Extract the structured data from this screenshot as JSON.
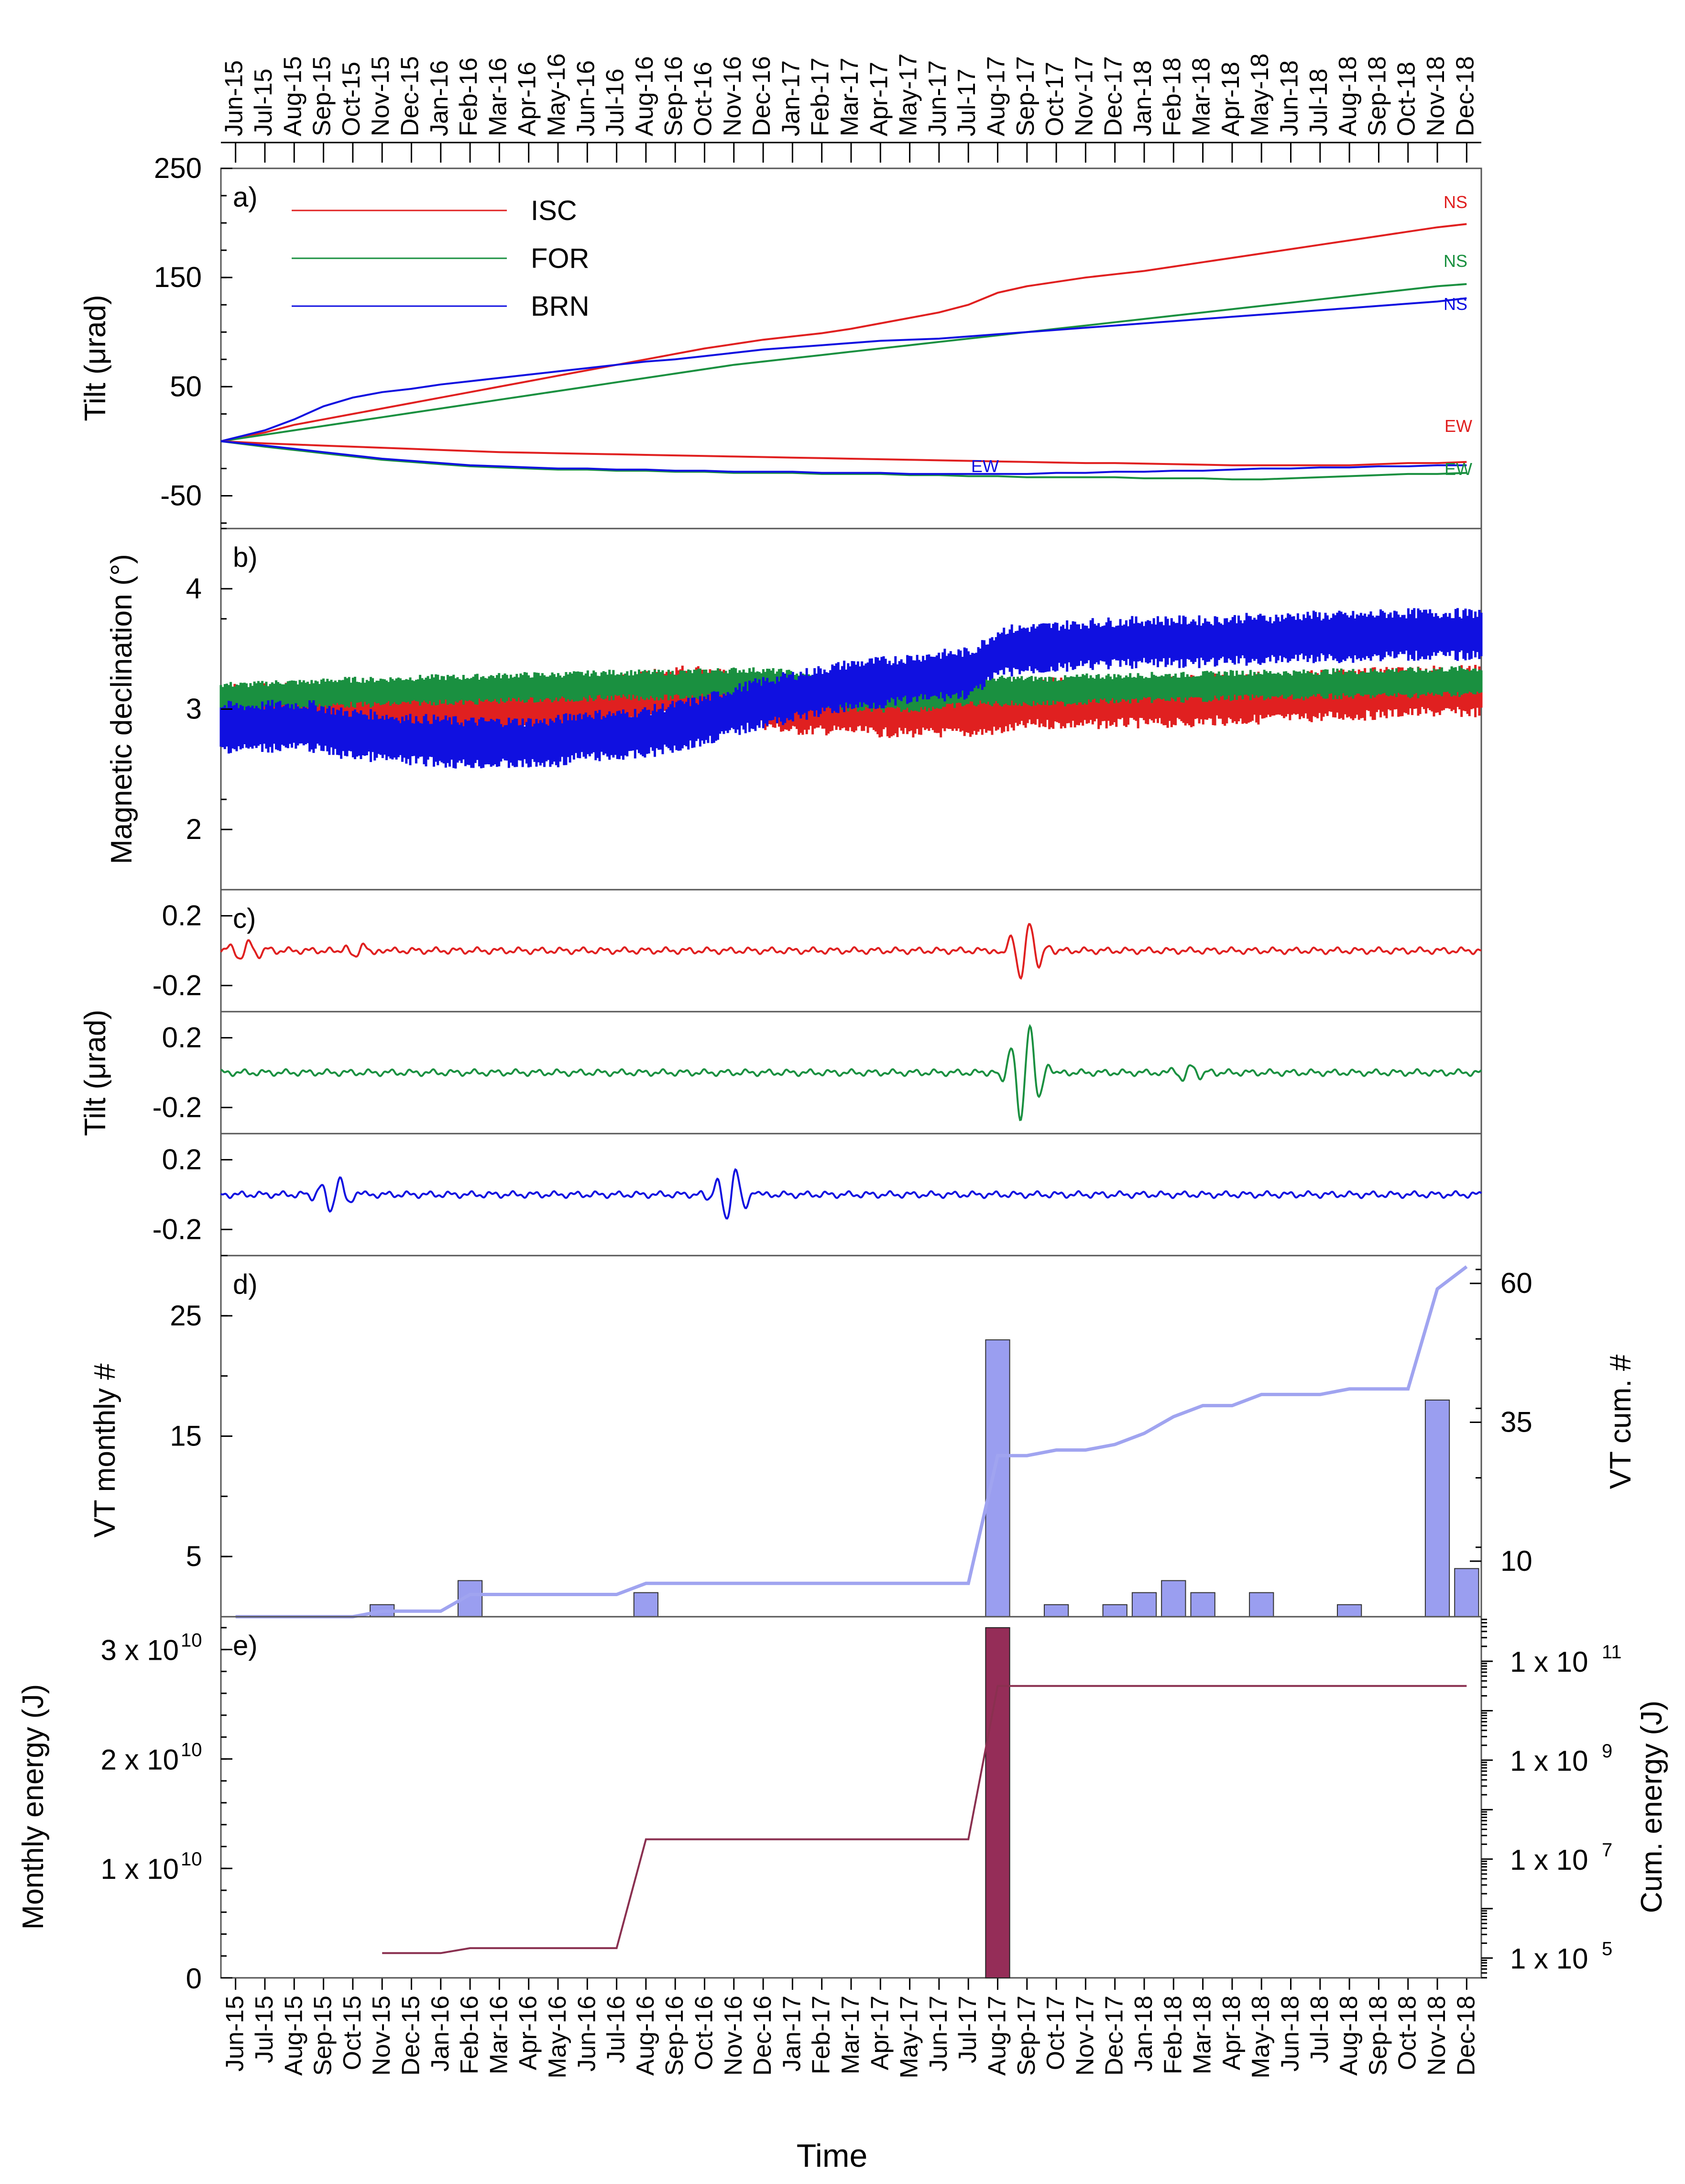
{
  "chart_data": {
    "type": "multi-panel time series",
    "months": [
      "Jun-15",
      "Jul-15",
      "Aug-15",
      "Sep-15",
      "Oct-15",
      "Nov-15",
      "Dec-15",
      "Jan-16",
      "Feb-16",
      "Mar-16",
      "Apr-16",
      "May-16",
      "Jun-16",
      "Jul-16",
      "Aug-16",
      "Sep-16",
      "Oct-16",
      "Nov-16",
      "Dec-16",
      "Jan-17",
      "Feb-17",
      "Mar-17",
      "Apr-17",
      "May-17",
      "Jun-17",
      "Jul-17",
      "Aug-17",
      "Sep-17",
      "Oct-17",
      "Nov-17",
      "Dec-17",
      "Jan-18",
      "Feb-18",
      "Mar-18",
      "Apr-18",
      "May-18",
      "Jun-18",
      "Jul-18",
      "Aug-18",
      "Sep-18",
      "Oct-18",
      "Nov-18",
      "Dec-18"
    ],
    "xlabel": "Time",
    "colors": {
      "ISC": "#e02020",
      "FOR": "#1a9040",
      "BRN": "#1010e0",
      "vt_bar": "#9a9ef0",
      "vt_line": "#a0a4f0",
      "energy_bar": "#952d58",
      "energy_line": "#8a3050"
    },
    "panels": [
      {
        "label": "a)",
        "ylabel": "Tilt (μrad)",
        "ylim": [
          -80,
          250
        ],
        "yticks": [
          "250",
          "150",
          "50",
          "-50"
        ],
        "ytick_values": [
          250,
          150,
          50,
          -50
        ],
        "legend": [
          "ISC",
          "FOR",
          "BRN"
        ],
        "series": [
          {
            "name": "ISC NS",
            "station": "ISC",
            "values": [
              0,
              8,
              15,
              20,
              25,
              30,
              35,
              40,
              45,
              50,
              55,
              60,
              65,
              70,
              75,
              80,
              85,
              89,
              93,
              96,
              99,
              103,
              108,
              113,
              118,
              125,
              136,
              142,
              146,
              150,
              153,
              156,
              160,
              164,
              168,
              172,
              176,
              180,
              184,
              188,
              192,
              196,
              199
            ]
          },
          {
            "name": "FOR NS",
            "station": "FOR",
            "values": [
              0,
              6,
              10,
              14,
              18,
              22,
              26,
              30,
              34,
              38,
              42,
              46,
              50,
              54,
              58,
              62,
              66,
              70,
              73,
              76,
              79,
              82,
              85,
              88,
              91,
              94,
              97,
              100,
              103,
              106,
              109,
              112,
              115,
              118,
              121,
              124,
              127,
              130,
              133,
              136,
              139,
              142,
              144
            ]
          },
          {
            "name": "BRN NS",
            "station": "BRN",
            "values": [
              0,
              10,
              20,
              32,
              40,
              45,
              48,
              52,
              55,
              58,
              61,
              64,
              67,
              70,
              73,
              75,
              78,
              81,
              84,
              86,
              88,
              90,
              92,
              93,
              94,
              96,
              98,
              100,
              102,
              104,
              106,
              108,
              110,
              112,
              114,
              116,
              118,
              120,
              122,
              124,
              126,
              128,
              131
            ]
          },
          {
            "name": "ISC EW",
            "station": "ISC",
            "values": [
              0,
              -2,
              -3,
              -4,
              -5,
              -6,
              -7,
              -8,
              -9,
              -10,
              -10.5,
              -11,
              -11.5,
              -12,
              -12.5,
              -13,
              -13.5,
              -14,
              -14.5,
              -15,
              -15.5,
              -16,
              -16.5,
              -17,
              -17.5,
              -18,
              -18.5,
              -19,
              -19.5,
              -20,
              -20,
              -20.5,
              -21,
              -21.5,
              -22,
              -22,
              -22,
              -22,
              -22,
              -21,
              -20,
              -20,
              -19
            ]
          },
          {
            "name": "FOR EW",
            "station": "FOR",
            "values": [
              0,
              -5,
              -8,
              -11,
              -14,
              -17,
              -19,
              -21,
              -23,
              -24,
              -25,
              -26,
              -26,
              -27,
              -27,
              -28,
              -28,
              -29,
              -29,
              -29,
              -30,
              -30,
              -30,
              -31,
              -31,
              -32,
              -32,
              -33,
              -33,
              -33,
              -33,
              -34,
              -34,
              -34,
              -35,
              -35,
              -34,
              -33,
              -32,
              -31,
              -30,
              -30,
              -29
            ]
          },
          {
            "name": "BRN EW",
            "station": "BRN",
            "values": [
              0,
              -4,
              -7,
              -10,
              -13,
              -16,
              -18,
              -20,
              -22,
              -23,
              -24,
              -25,
              -25,
              -26,
              -26,
              -27,
              -27,
              -28,
              -28,
              -28,
              -29,
              -29,
              -29,
              -30,
              -30,
              -30,
              -30,
              -30,
              -29,
              -29,
              -28,
              -28,
              -27,
              -27,
              -26,
              -25,
              -25,
              -24,
              -24,
              -23,
              -23,
              -22,
              -22
            ]
          }
        ],
        "annotations": [
          {
            "text": "NS",
            "color": "#e02020"
          },
          {
            "text": "NS",
            "color": "#1a9040"
          },
          {
            "text": "NS",
            "color": "#1010e0"
          },
          {
            "text": "EW",
            "color": "#e02020"
          },
          {
            "text": "EW",
            "color": "#1010e0"
          },
          {
            "text": "EW",
            "color": "#1a9040"
          }
        ]
      },
      {
        "label": "b)",
        "ylabel": "Magnetic declination (°)",
        "ylim": [
          1.5,
          4.5
        ],
        "yticks": [
          "4",
          "3",
          "2"
        ],
        "ytick_values": [
          4,
          3,
          2
        ],
        "series": [
          {
            "name": "ISC",
            "mean": [
              3.0,
              3.0,
              3.0,
              3.0,
              3.0,
              3.0,
              3.0,
              3.0,
              3.0,
              3.0,
              3.0,
              3.0,
              3.0,
              3.05,
              3.1,
              3.15,
              3.15,
              3.1,
              3.05,
              3.0,
              3.0,
              3.0,
              2.98,
              2.98,
              2.98,
              2.98,
              3.0,
              3.05,
              3.05,
              3.05,
              3.06,
              3.06,
              3.06,
              3.08,
              3.08,
              3.1,
              3.1,
              3.12,
              3.12,
              3.14,
              3.15,
              3.15,
              3.15
            ],
            "spread": 0.22
          },
          {
            "name": "FOR",
            "mean": [
              3.1,
              3.1,
              3.12,
              3.12,
              3.14,
              3.14,
              3.15,
              3.16,
              3.16,
              3.17,
              3.18,
              3.18,
              3.19,
              3.2,
              3.2,
              3.2,
              3.21,
              3.22,
              3.22,
              3.2,
              3.15,
              3.1,
              3.1,
              3.1,
              3.12,
              3.15,
              3.15,
              3.15,
              3.15,
              3.17,
              3.17,
              3.18,
              3.18,
              3.19,
              3.2,
              3.2,
              3.2,
              3.21,
              3.21,
              3.22,
              3.22,
              3.23,
              3.23
            ],
            "spread": 0.13
          },
          {
            "name": "BRN",
            "mean": [
              2.85,
              2.85,
              2.86,
              2.86,
              2.8,
              2.78,
              2.75,
              2.74,
              2.72,
              2.72,
              2.72,
              2.72,
              2.78,
              2.78,
              2.8,
              2.85,
              2.9,
              2.98,
              3.05,
              3.1,
              3.15,
              3.2,
              3.22,
              3.25,
              3.28,
              3.3,
              3.48,
              3.5,
              3.52,
              3.54,
              3.55,
              3.56,
              3.56,
              3.56,
              3.58,
              3.58,
              3.6,
              3.6,
              3.6,
              3.62,
              3.62,
              3.62,
              3.62
            ],
            "spread": 0.22
          }
        ]
      },
      {
        "label": "c)",
        "ylabel": "Tilt (μrad)",
        "ylim": [
          -0.35,
          0.35
        ],
        "yticks": [
          "0.2",
          "-0.2"
        ],
        "ytick_values": [
          0.2,
          -0.2
        ],
        "series": [
          {
            "name": "ISC",
            "events": [
              {
                "month": 0.8,
                "amp": 0.05
              },
              {
                "month": 4.6,
                "amp": 0.05
              },
              {
                "month": 26.8,
                "amp": 0.18
              }
            ]
          },
          {
            "name": "FOR",
            "events": [
              {
                "month": 26.8,
                "amp": 0.3
              },
              {
                "month": 32.2,
                "amp": 0.05
              }
            ]
          },
          {
            "name": "BRN",
            "events": [
              {
                "month": 3.8,
                "amp": 0.1
              },
              {
                "month": 17.0,
                "amp": 0.16
              }
            ]
          }
        ]
      },
      {
        "label": "d)",
        "ylabel": "VT monthly  #",
        "ylabel_right": "VT cum. #",
        "ylim": [
          0,
          30
        ],
        "ylim_right": [
          0,
          65
        ],
        "yticks": [
          "25",
          "15",
          "5"
        ],
        "ytick_values": [
          25,
          15,
          5
        ],
        "yticks_right": [
          "60",
          "35",
          "10"
        ],
        "ytick_values_right": [
          60,
          35,
          10
        ],
        "bars": [
          0,
          0,
          0,
          0,
          0,
          1,
          0,
          0,
          3,
          0,
          0,
          0,
          0,
          0,
          2,
          0,
          0,
          0,
          0,
          0,
          0,
          0,
          0,
          0,
          0,
          0,
          23,
          0,
          1,
          0,
          1,
          2,
          3,
          2,
          0,
          2,
          0,
          0,
          1,
          0,
          0,
          18,
          4
        ],
        "cumulative": [
          0,
          0,
          0,
          0,
          0,
          1,
          1,
          1,
          4,
          4,
          4,
          4,
          4,
          4,
          6,
          6,
          6,
          6,
          6,
          6,
          6,
          6,
          6,
          6,
          6,
          6,
          29,
          29,
          30,
          30,
          31,
          33,
          36,
          38,
          38,
          40,
          40,
          40,
          41,
          41,
          41,
          59,
          63
        ]
      },
      {
        "label": "e)",
        "ylabel": "Monthly energy (J)",
        "ylabel_right": "Cum. energy (J)",
        "ylim": [
          0,
          33000000000
        ],
        "yticks": [
          "0",
          "1 x 10",
          "2 x 10",
          "3 x 10"
        ],
        "ytick_values": [
          0,
          10000000000,
          20000000000,
          30000000000
        ],
        "yticks_right": [
          "1 x 10",
          "1 x 10",
          "1 x 10",
          "1 x 10"
        ],
        "ytick_right_log10": [
          5,
          7,
          9,
          11
        ],
        "exponents_left": [
          "",
          "10",
          "10",
          "10"
        ],
        "exponents_right": [
          "5",
          "7",
          "9",
          "11"
        ],
        "bars": [
          0,
          0,
          0,
          0,
          0,
          0,
          0,
          0,
          0,
          0,
          0,
          0,
          0,
          0,
          0,
          0,
          0,
          0,
          0,
          0,
          0,
          0,
          0,
          0,
          0,
          0,
          32000000000,
          0,
          0,
          0,
          0,
          0,
          0,
          0,
          0,
          0,
          0,
          0,
          0,
          0,
          0,
          0,
          0
        ],
        "cumulative_log10": [
          null,
          null,
          null,
          null,
          null,
          5.1,
          5.1,
          5.1,
          5.2,
          5.2,
          5.2,
          5.2,
          5.2,
          5.2,
          7.4,
          7.4,
          7.4,
          7.4,
          7.4,
          7.4,
          7.4,
          7.4,
          7.4,
          7.4,
          7.4,
          7.4,
          10.5,
          10.5,
          10.5,
          10.5,
          10.5,
          10.5,
          10.5,
          10.5,
          10.5,
          10.5,
          10.5,
          10.5,
          10.5,
          10.5,
          10.5,
          10.5,
          10.5
        ]
      }
    ]
  }
}
